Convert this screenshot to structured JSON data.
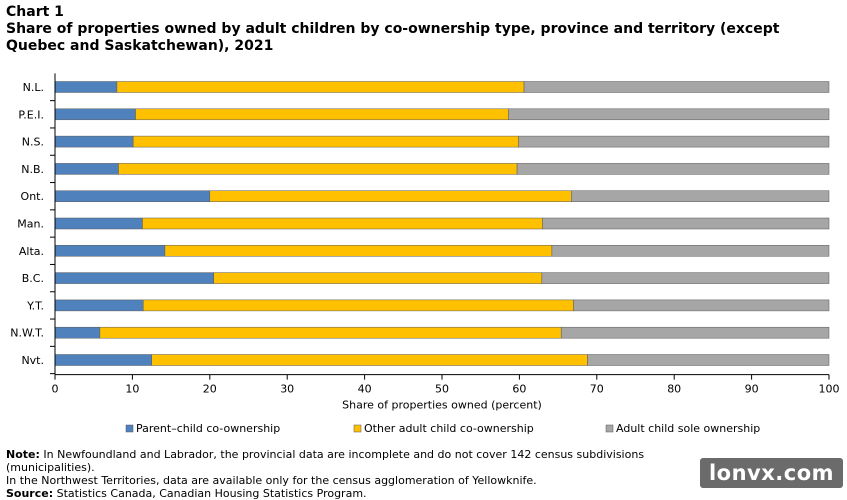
{
  "heading": {
    "label": "Chart 1",
    "title": "Share of properties owned by adult children  by co-ownership type, province and territory (except Quebec and Saskatchewan), 2021"
  },
  "chart_data": {
    "type": "bar",
    "orientation": "horizontal",
    "stacked": true,
    "categories": [
      "N.L.",
      "P.E.I.",
      "N.S.",
      "N.B.",
      "Ont.",
      "Man.",
      "Alta.",
      "B.C.",
      "Y.T.",
      "N.W.T.",
      "Nvt."
    ],
    "series": [
      {
        "name": "Parent–child co-ownership",
        "color": "#4f81bd",
        "values": [
          8.0,
          10.4,
          10.1,
          8.2,
          20.0,
          11.3,
          14.2,
          20.5,
          11.4,
          5.8,
          12.5
        ]
      },
      {
        "name": "Other adult child co-ownership",
        "color": "#ffc000",
        "values": [
          52.6,
          48.2,
          49.8,
          51.5,
          46.7,
          51.7,
          50.0,
          42.4,
          55.6,
          59.6,
          56.3
        ]
      },
      {
        "name": "Adult child sole ownership",
        "color": "#a6a6a6",
        "values": [
          39.4,
          41.4,
          40.1,
          40.3,
          33.3,
          37.0,
          35.8,
          37.1,
          33.0,
          34.6,
          31.2
        ]
      }
    ],
    "xlabel": "Share of properties owned (percent)",
    "xlim": [
      0,
      100
    ],
    "xticks": [
      0,
      10,
      20,
      30,
      40,
      50,
      60,
      70,
      80,
      90,
      100
    ],
    "grid": false,
    "legend": "bottom"
  },
  "notes": {
    "note_label": "Note:",
    "note_line1": " In Newfoundland and Labrador, the provincial data are incomplete and do not cover 142 census subdivisions (municipalities).",
    "note_line2": "In the Northwest Territories, data are available only for the census agglomeration of Yellowknife.",
    "source_label": "Source:",
    "source_text": " Statistics Canada, Canadian Housing Statistics Program."
  },
  "watermark": "lonvx.com"
}
